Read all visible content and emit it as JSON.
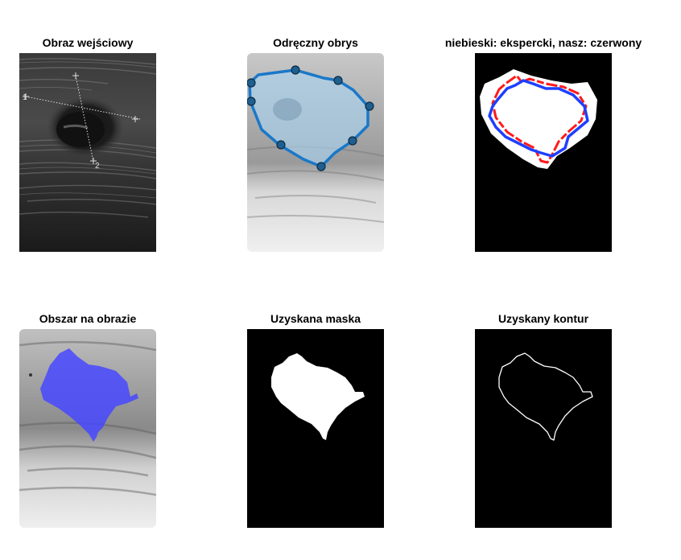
{
  "figure": {
    "panels": [
      {
        "title": "Obraz wejściowy"
      },
      {
        "title": "Odręczny obrys"
      },
      {
        "title": "niebieski: ekspercki, nasz: czerwony"
      },
      {
        "title": "Obszar na obrazie"
      },
      {
        "title": "Uzyskana maska"
      },
      {
        "title": "Uzyskany kontur"
      }
    ],
    "ultrasound_markers": {
      "marker_1": "1",
      "marker_2": "2"
    },
    "colors": {
      "expert_contour": "#1f5fff",
      "our_contour": "#ff1a1a",
      "handdrawn_contour": "#1a78c8",
      "region_fill": "#4040ff",
      "mask_background": "#000000",
      "mask_foreground": "#ffffff"
    }
  }
}
